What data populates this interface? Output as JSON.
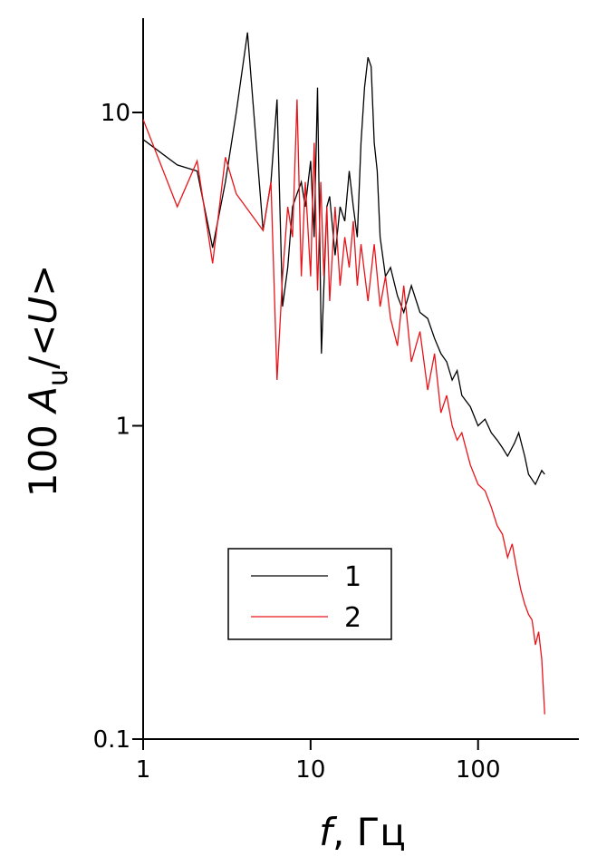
{
  "chart_data": {
    "type": "line",
    "xlabel": [
      "f",
      ", Гц"
    ],
    "ylabel": [
      "100 ",
      "A",
      "u",
      "/<",
      "U",
      ">"
    ],
    "xlog": true,
    "ylog": true,
    "xlim": [
      1,
      400
    ],
    "ylim": [
      0.1,
      20
    ],
    "xticks": [
      1,
      10,
      100
    ],
    "yticks": [
      0.1,
      1,
      10
    ],
    "legend": "lower-left",
    "series": [
      {
        "name": "1",
        "color": "#000000",
        "x": [
          1,
          1.6,
          2.1,
          2.6,
          3.1,
          3.6,
          4.2,
          5.2,
          5.8,
          6.3,
          6.8,
          7.3,
          7.8,
          8.3,
          8.8,
          9.3,
          10,
          10.5,
          11,
          11.6,
          12.5,
          13,
          14,
          15,
          16,
          17,
          18,
          19,
          20,
          21,
          22,
          23,
          24,
          25,
          26,
          28,
          30,
          33,
          36,
          40,
          45,
          50,
          55,
          60,
          65,
          70,
          75,
          80,
          90,
          100,
          110,
          120,
          130,
          140,
          150,
          165,
          175,
          190,
          200,
          220,
          240,
          250
        ],
        "values": [
          8.2,
          6.8,
          6.5,
          3.7,
          6,
          10,
          18,
          4.2,
          6,
          11,
          2.4,
          3.2,
          5,
          5.5,
          6,
          5,
          7,
          4,
          12,
          1.7,
          5,
          5.4,
          3.5,
          5,
          4.5,
          6.5,
          5,
          4,
          8,
          12,
          15,
          14,
          8,
          6.5,
          4,
          3,
          3.2,
          2.6,
          2.3,
          2.8,
          2.3,
          2.2,
          1.9,
          1.7,
          1.6,
          1.4,
          1.5,
          1.25,
          1.15,
          1.0,
          1.05,
          0.95,
          0.9,
          0.85,
          0.8,
          0.88,
          0.95,
          0.8,
          0.7,
          0.65,
          0.72,
          0.7
        ]
      },
      {
        "name": "2",
        "color": "#e8141a",
        "x": [
          1,
          1.6,
          2.1,
          2.6,
          3.1,
          3.6,
          5.2,
          5.8,
          6.3,
          6.8,
          7.3,
          7.8,
          8.3,
          8.8,
          9.3,
          10,
          10.5,
          11,
          11.5,
          12,
          12.5,
          13,
          14,
          15,
          16,
          17,
          18,
          19,
          20,
          22,
          24,
          26,
          28,
          30,
          33,
          36,
          40,
          45,
          50,
          55,
          60,
          65,
          70,
          75,
          80,
          90,
          100,
          110,
          120,
          130,
          140,
          150,
          160,
          170,
          180,
          190,
          200,
          210,
          220,
          230,
          240,
          250
        ],
        "values": [
          9.5,
          5,
          7,
          3.3,
          7.2,
          5.5,
          4.2,
          6,
          1.4,
          3,
          5,
          4,
          11,
          3,
          6,
          3,
          8,
          2.7,
          6,
          3,
          5,
          2.5,
          5,
          2.8,
          4,
          3.2,
          4.5,
          2.8,
          3.8,
          2.5,
          3.8,
          2.4,
          3,
          2.2,
          1.8,
          2.8,
          1.6,
          2.0,
          1.3,
          1.7,
          1.1,
          1.25,
          1.0,
          0.9,
          0.95,
          0.75,
          0.65,
          0.62,
          0.55,
          0.48,
          0.45,
          0.38,
          0.42,
          0.35,
          0.3,
          0.27,
          0.25,
          0.24,
          0.2,
          0.22,
          0.18,
          0.12
        ]
      }
    ]
  }
}
